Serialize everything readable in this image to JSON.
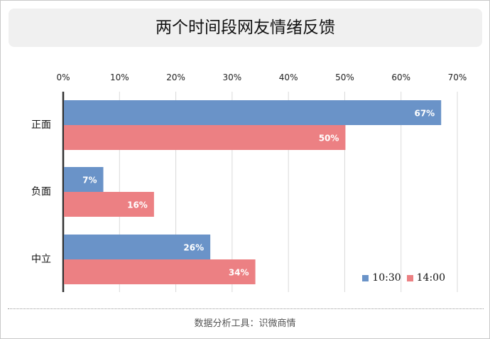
{
  "title": "两个时间段网友情绪反馈",
  "source": "数据分析工具：识微商情",
  "colors": {
    "series1": "#6a93c8",
    "series2": "#ec8083",
    "grid": "#d9d9d9",
    "axis": "#333333"
  },
  "chart_data": {
    "type": "bar",
    "orientation": "horizontal",
    "categories": [
      "正面",
      "负面",
      "中立"
    ],
    "series": [
      {
        "name": "10:30",
        "values": [
          67,
          7,
          26
        ],
        "labels": [
          "67%",
          "7%",
          "26%"
        ]
      },
      {
        "name": "14:00",
        "values": [
          50,
          16,
          34
        ],
        "labels": [
          "50%",
          "16%",
          "34%"
        ]
      }
    ],
    "xlim": [
      0,
      70
    ],
    "xticks": [
      "0%",
      "10%",
      "20%",
      "30%",
      "40%",
      "50%",
      "60%",
      "70%"
    ],
    "grid": true,
    "legend": "bottom-right"
  }
}
